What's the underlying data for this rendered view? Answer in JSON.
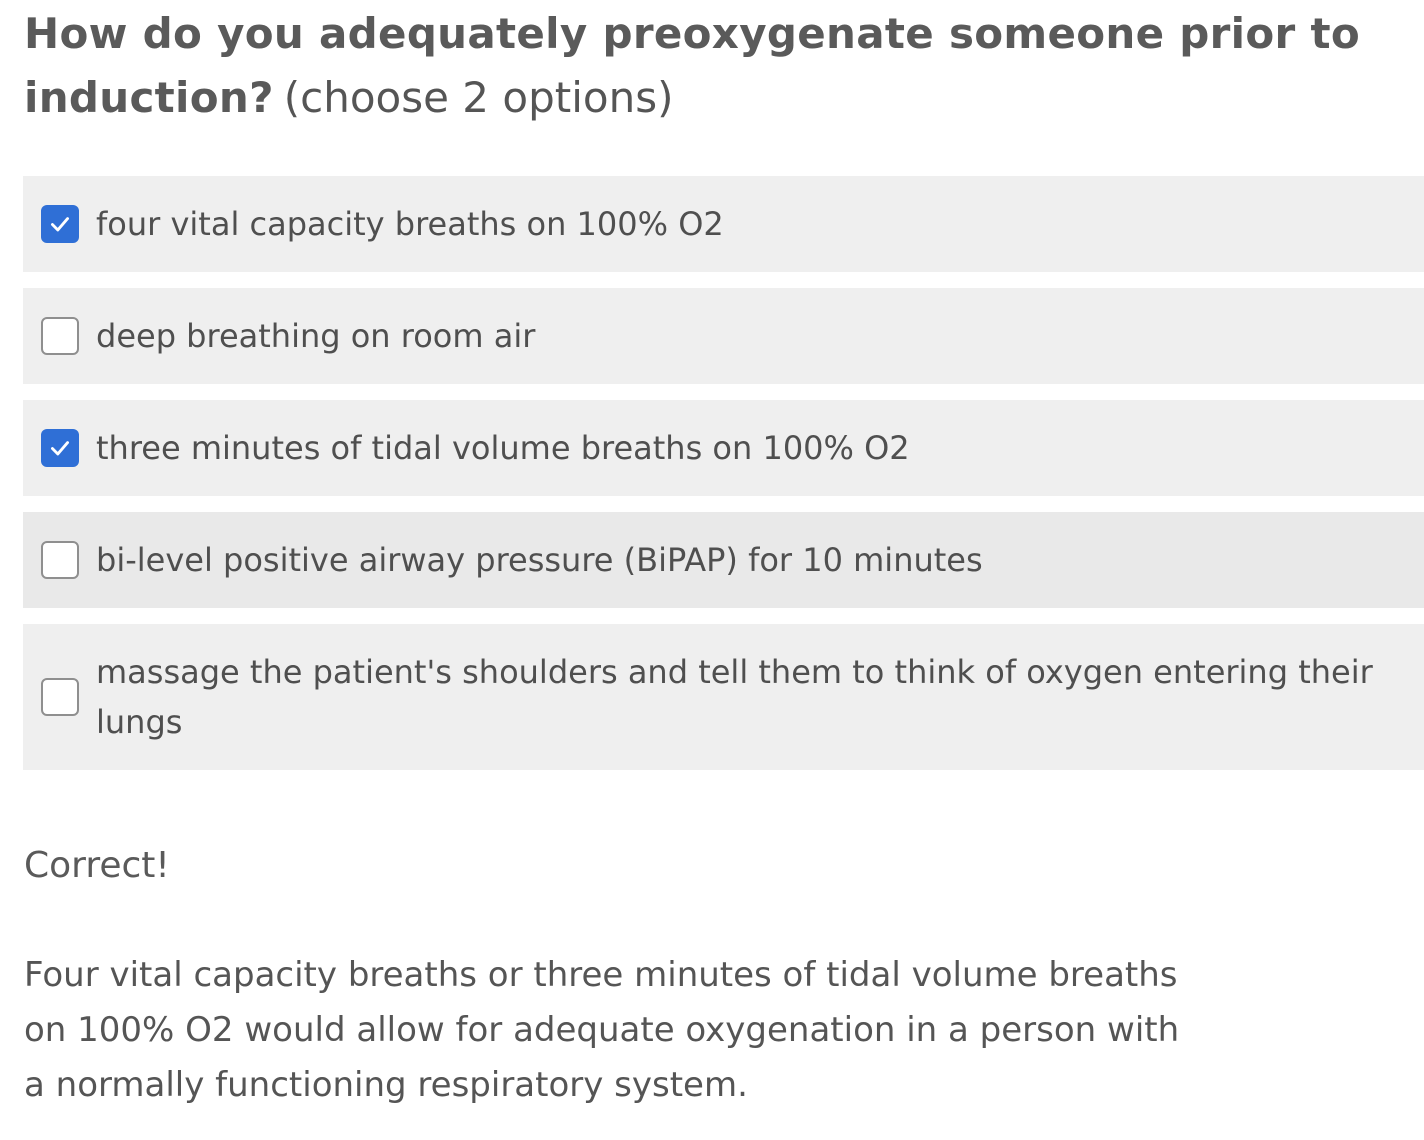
{
  "question": {
    "text": "How do you adequately preoxygenate someone prior to induction?",
    "hint": "(choose 2 options)"
  },
  "options": [
    {
      "label": "four vital capacity breaths on 100% O2",
      "checked": true
    },
    {
      "label": "deep breathing on room air",
      "checked": false
    },
    {
      "label": "three minutes of tidal volume breaths on 100% O2",
      "checked": true
    },
    {
      "label": "bi-level positive airway pressure (BiPAP) for 10 minutes",
      "checked": false
    },
    {
      "label": "massage the patient's shoulders and tell them to think of oxygen entering their lungs",
      "checked": false
    }
  ],
  "feedback": {
    "status": "Correct!",
    "explanation": "Four vital capacity breaths or three minutes of tidal volume breaths on 100% O2 would allow for adequate oxygenation in a person with a normally functioning respiratory system."
  },
  "colors": {
    "checkbox_checked": "#2f6fd6",
    "option_background": "#efefef",
    "text": "#555555"
  }
}
